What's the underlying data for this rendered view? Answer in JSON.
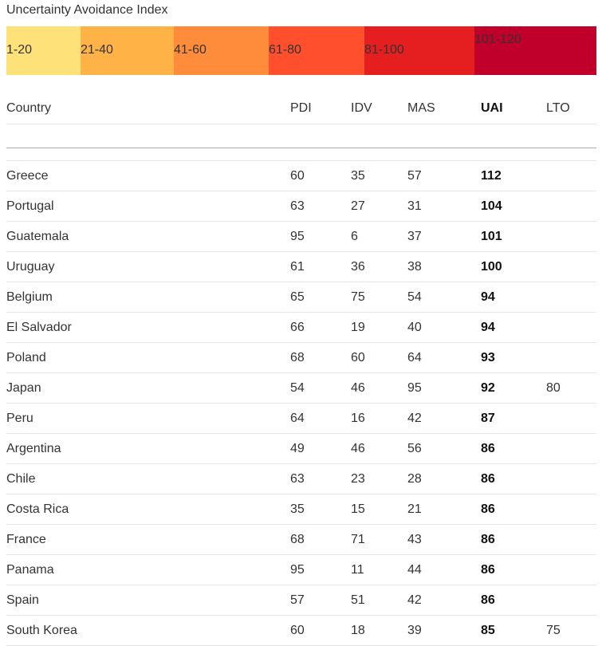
{
  "legend": {
    "title": "Uncertainty Avoidance Index",
    "bins": [
      {
        "label": "1-20",
        "color": "#ffe17a"
      },
      {
        "label": "21-40",
        "color": "#ffb347"
      },
      {
        "label": "41-60",
        "color": "#ff8c3a"
      },
      {
        "label": "61-80",
        "color": "#ff4f2d"
      },
      {
        "label": "81-100",
        "color": "#e51f1f"
      },
      {
        "label": "101-120",
        "color": "#c0002a"
      }
    ]
  },
  "table": {
    "headers": {
      "country": "Country",
      "pdi": "PDI",
      "idv": "IDV",
      "mas": "MAS",
      "uai": "UAI",
      "lto": "LTO"
    },
    "rows": [
      {
        "country": "Greece",
        "pdi": "60",
        "idv": "35",
        "mas": "57",
        "uai": "112",
        "lto": ""
      },
      {
        "country": "Portugal",
        "pdi": "63",
        "idv": "27",
        "mas": "31",
        "uai": "104",
        "lto": ""
      },
      {
        "country": "Guatemala",
        "pdi": "95",
        "idv": "6",
        "mas": "37",
        "uai": "101",
        "lto": ""
      },
      {
        "country": "Uruguay",
        "pdi": "61",
        "idv": "36",
        "mas": "38",
        "uai": "100",
        "lto": ""
      },
      {
        "country": "Belgium",
        "pdi": "65",
        "idv": "75",
        "mas": "54",
        "uai": "94",
        "lto": ""
      },
      {
        "country": "El Salvador",
        "pdi": "66",
        "idv": "19",
        "mas": "40",
        "uai": "94",
        "lto": ""
      },
      {
        "country": "Poland",
        "pdi": "68",
        "idv": "60",
        "mas": "64",
        "uai": "93",
        "lto": ""
      },
      {
        "country": "Japan",
        "pdi": "54",
        "idv": "46",
        "mas": "95",
        "uai": "92",
        "lto": "80"
      },
      {
        "country": "Peru",
        "pdi": "64",
        "idv": "16",
        "mas": "42",
        "uai": "87",
        "lto": ""
      },
      {
        "country": "Argentina",
        "pdi": "49",
        "idv": "46",
        "mas": "56",
        "uai": "86",
        "lto": ""
      },
      {
        "country": "Chile",
        "pdi": "63",
        "idv": "23",
        "mas": "28",
        "uai": "86",
        "lto": ""
      },
      {
        "country": "Costa Rica",
        "pdi": "35",
        "idv": "15",
        "mas": "21",
        "uai": "86",
        "lto": ""
      },
      {
        "country": "France",
        "pdi": "68",
        "idv": "71",
        "mas": "43",
        "uai": "86",
        "lto": ""
      },
      {
        "country": "Panama",
        "pdi": "95",
        "idv": "11",
        "mas": "44",
        "uai": "86",
        "lto": ""
      },
      {
        "country": "Spain",
        "pdi": "57",
        "idv": "51",
        "mas": "42",
        "uai": "86",
        "lto": ""
      },
      {
        "country": "South Korea",
        "pdi": "60",
        "idv": "18",
        "mas": "39",
        "uai": "85",
        "lto": "75"
      }
    ]
  }
}
